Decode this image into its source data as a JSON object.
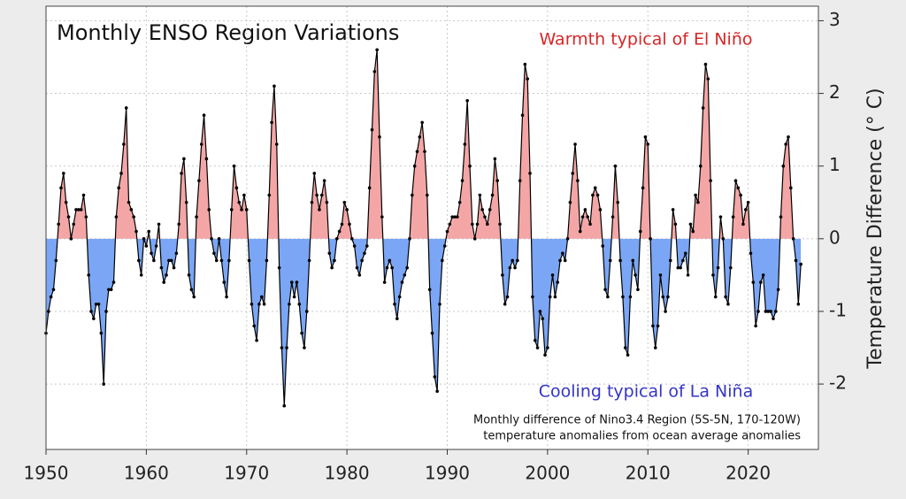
{
  "chart_data": {
    "type": "area",
    "title": "Monthly ENSO Region Variations",
    "annotations": [
      {
        "text": "Warmth typical of El Niño",
        "color": "#d62728"
      },
      {
        "text": "Cooling typical of La Niña",
        "color": "#3535c8"
      }
    ],
    "note": [
      "Monthly difference of Nino3.4 Region (5S-5N, 170-120W)",
      "temperature anomalies from ocean average anomalies"
    ],
    "ylabel": "Temperature Difference (° C)",
    "xlim": [
      1950,
      2027
    ],
    "ylim": [
      -2.9,
      3.2
    ],
    "xticks": [
      1950,
      1960,
      1970,
      1980,
      1990,
      2000,
      2010,
      2020
    ],
    "yticks": [
      -2,
      -1,
      0,
      1,
      2,
      3
    ],
    "grid": true,
    "line_color": "#000000",
    "positive_color": "#f4a6a6",
    "negative_color": "#7aa6f5",
    "x": [
      1950,
      1950.25,
      1950.5,
      1950.75,
      1951,
      1951.25,
      1951.5,
      1951.75,
      1952,
      1952.25,
      1952.5,
      1952.75,
      1953,
      1953.25,
      1953.5,
      1953.75,
      1954,
      1954.25,
      1954.5,
      1954.75,
      1955,
      1955.25,
      1955.5,
      1955.75,
      1956,
      1956.25,
      1956.5,
      1956.75,
      1957,
      1957.25,
      1957.5,
      1957.75,
      1958,
      1958.25,
      1958.5,
      1958.75,
      1959,
      1959.25,
      1959.5,
      1959.75,
      1960,
      1960.25,
      1960.5,
      1960.75,
      1961,
      1961.25,
      1961.5,
      1961.75,
      1962,
      1962.25,
      1962.5,
      1962.75,
      1963,
      1963.25,
      1963.5,
      1963.75,
      1964,
      1964.25,
      1964.5,
      1964.75,
      1965,
      1965.25,
      1965.5,
      1965.75,
      1966,
      1966.25,
      1966.5,
      1966.75,
      1967,
      1967.25,
      1967.5,
      1967.75,
      1968,
      1968.25,
      1968.5,
      1968.75,
      1969,
      1969.25,
      1969.5,
      1969.75,
      1970,
      1970.25,
      1970.5,
      1970.75,
      1971,
      1971.25,
      1971.5,
      1971.75,
      1972,
      1972.25,
      1972.5,
      1972.75,
      1973,
      1973.25,
      1973.5,
      1973.75,
      1974,
      1974.25,
      1974.5,
      1974.75,
      1975,
      1975.25,
      1975.5,
      1975.75,
      1976,
      1976.25,
      1976.5,
      1976.75,
      1977,
      1977.25,
      1977.5,
      1977.75,
      1978,
      1978.25,
      1978.5,
      1978.75,
      1979,
      1979.25,
      1979.5,
      1979.75,
      1980,
      1980.25,
      1980.5,
      1980.75,
      1981,
      1981.25,
      1981.5,
      1981.75,
      1982,
      1982.25,
      1982.5,
      1982.75,
      1983,
      1983.25,
      1983.5,
      1983.75,
      1984,
      1984.25,
      1984.5,
      1984.75,
      1985,
      1985.25,
      1985.5,
      1985.75,
      1986,
      1986.25,
      1986.5,
      1986.75,
      1987,
      1987.25,
      1987.5,
      1987.75,
      1988,
      1988.25,
      1988.5,
      1988.75,
      1989,
      1989.25,
      1989.5,
      1989.75,
      1990,
      1990.25,
      1990.5,
      1990.75,
      1991,
      1991.25,
      1991.5,
      1991.75,
      1992,
      1992.25,
      1992.5,
      1992.75,
      1993,
      1993.25,
      1993.5,
      1993.75,
      1994,
      1994.25,
      1994.5,
      1994.75,
      1995,
      1995.25,
      1995.5,
      1995.75,
      1996,
      1996.25,
      1996.5,
      1996.75,
      1997,
      1997.25,
      1997.5,
      1997.75,
      1998,
      1998.25,
      1998.5,
      1998.75,
      1999,
      1999.25,
      1999.5,
      1999.75,
      2000,
      2000.25,
      2000.5,
      2000.75,
      2001,
      2001.25,
      2001.5,
      2001.75,
      2002,
      2002.25,
      2002.5,
      2002.75,
      2003,
      2003.25,
      2003.5,
      2003.75,
      2004,
      2004.25,
      2004.5,
      2004.75,
      2005,
      2005.25,
      2005.5,
      2005.75,
      2006,
      2006.25,
      2006.5,
      2006.75,
      2007,
      2007.25,
      2007.5,
      2007.75,
      2008,
      2008.25,
      2008.5,
      2008.75,
      2009,
      2009.25,
      2009.5,
      2009.75,
      2010,
      2010.25,
      2010.5,
      2010.75,
      2011,
      2011.25,
      2011.5,
      2011.75,
      2012,
      2012.25,
      2012.5,
      2012.75,
      2013,
      2013.25,
      2013.5,
      2013.75,
      2014,
      2014.25,
      2014.5,
      2014.75,
      2015,
      2015.25,
      2015.5,
      2015.75,
      2016,
      2016.25,
      2016.5,
      2016.75,
      2017,
      2017.25,
      2017.5,
      2017.75,
      2018,
      2018.25,
      2018.5,
      2018.75,
      2019,
      2019.25,
      2019.5,
      2019.75,
      2020,
      2020.25,
      2020.5,
      2020.75,
      2021,
      2021.25,
      2021.5,
      2021.75,
      2022,
      2022.25,
      2022.5,
      2022.75,
      2023,
      2023.25,
      2023.5,
      2023.75,
      2024,
      2024.25,
      2024.5,
      2024.75,
      2025,
      2025.25
    ],
    "values": [
      -1.3,
      -1.0,
      -0.8,
      -0.7,
      -0.3,
      0.2,
      0.7,
      0.9,
      0.5,
      0.3,
      0.0,
      0.2,
      0.4,
      0.4,
      0.4,
      0.6,
      0.3,
      -0.5,
      -1.0,
      -1.1,
      -0.9,
      -0.9,
      -1.3,
      -2.0,
      -1.0,
      -0.7,
      -0.7,
      -0.6,
      0.3,
      0.7,
      0.9,
      1.3,
      1.8,
      0.5,
      0.4,
      0.3,
      0.1,
      -0.3,
      -0.5,
      0.0,
      -0.1,
      0.1,
      -0.2,
      -0.3,
      -0.1,
      0.2,
      -0.4,
      -0.6,
      -0.5,
      -0.3,
      -0.3,
      -0.4,
      -0.2,
      0.2,
      0.9,
      1.1,
      0.5,
      -0.5,
      -0.7,
      -0.8,
      0.3,
      0.8,
      1.3,
      1.7,
      1.1,
      0.4,
      0.0,
      -0.2,
      -0.3,
      0.0,
      -0.3,
      -0.6,
      -0.8,
      -0.3,
      0.4,
      1.0,
      0.7,
      0.5,
      0.4,
      0.6,
      0.4,
      -0.3,
      -0.9,
      -1.2,
      -1.4,
      -0.9,
      -0.8,
      -0.9,
      -0.3,
      0.6,
      1.6,
      2.1,
      1.3,
      -0.4,
      -1.5,
      -2.3,
      -1.5,
      -0.9,
      -0.6,
      -0.8,
      -0.6,
      -0.9,
      -1.3,
      -1.5,
      -1.0,
      -0.3,
      0.5,
      0.9,
      0.6,
      0.4,
      0.6,
      0.8,
      0.5,
      -0.2,
      -0.4,
      -0.3,
      0.0,
      0.1,
      0.2,
      0.5,
      0.4,
      0.2,
      0.0,
      -0.1,
      -0.4,
      -0.5,
      -0.3,
      -0.2,
      -0.1,
      0.7,
      1.5,
      2.3,
      2.6,
      1.4,
      0.3,
      -0.6,
      -0.4,
      -0.3,
      -0.4,
      -0.9,
      -1.1,
      -0.8,
      -0.6,
      -0.5,
      -0.4,
      0.0,
      0.6,
      1.0,
      1.2,
      1.4,
      1.6,
      1.2,
      0.6,
      -0.7,
      -1.3,
      -1.9,
      -2.1,
      -0.9,
      -0.3,
      -0.1,
      0.1,
      0.2,
      0.3,
      0.3,
      0.3,
      0.5,
      0.8,
      1.3,
      1.9,
      1.0,
      0.2,
      0.0,
      0.2,
      0.6,
      0.4,
      0.3,
      0.2,
      0.4,
      0.6,
      1.1,
      0.8,
      0.2,
      -0.5,
      -0.9,
      -0.8,
      -0.4,
      -0.3,
      -0.4,
      -0.3,
      0.8,
      1.7,
      2.4,
      2.2,
      0.9,
      -0.8,
      -1.4,
      -1.5,
      -1.0,
      -1.1,
      -1.6,
      -1.5,
      -0.8,
      -0.5,
      -0.8,
      -0.6,
      -0.3,
      -0.2,
      -0.3,
      0.0,
      0.5,
      0.9,
      1.3,
      0.8,
      0.1,
      0.3,
      0.4,
      0.3,
      0.2,
      0.6,
      0.7,
      0.6,
      0.4,
      -0.1,
      -0.7,
      -0.8,
      -0.3,
      0.3,
      1.0,
      0.5,
      -0.3,
      -0.8,
      -1.5,
      -1.6,
      -0.8,
      -0.3,
      -0.5,
      -0.7,
      0.1,
      0.7,
      1.4,
      1.3,
      0.0,
      -1.2,
      -1.5,
      -1.2,
      -0.5,
      -0.8,
      -1.0,
      -0.8,
      -0.3,
      0.4,
      0.2,
      -0.4,
      -0.4,
      -0.3,
      -0.2,
      -0.5,
      0.2,
      0.1,
      0.6,
      0.5,
      1.0,
      1.8,
      2.4,
      2.2,
      0.8,
      -0.5,
      -0.8,
      -0.4,
      0.3,
      0.0,
      -0.8,
      -0.9,
      -0.4,
      0.3,
      0.8,
      0.7,
      0.6,
      0.2,
      0.4,
      0.5,
      -0.2,
      -0.6,
      -1.2,
      -1.0,
      -0.6,
      -0.5,
      -1.0,
      -1.0,
      -1.0,
      -1.1,
      -1.0,
      -0.7,
      0.3,
      1.0,
      1.3,
      1.4,
      0.7,
      0.0,
      -0.3,
      -0.9,
      -0.35
    ]
  }
}
